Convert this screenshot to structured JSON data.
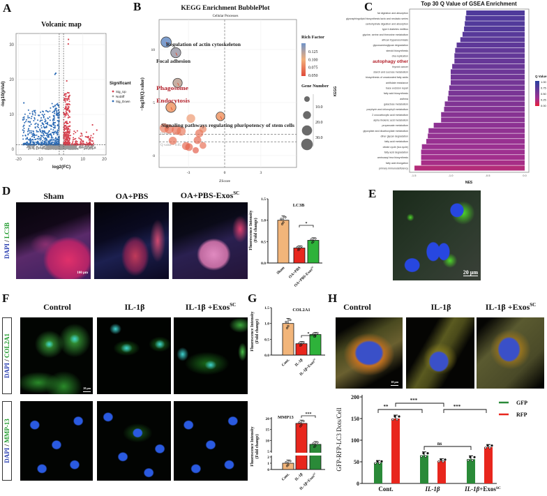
{
  "panels": {
    "A": {
      "label": "A",
      "title": "Volcanic map",
      "xlabel": "log2(FC)",
      "ylabel": "-log10(pVal)",
      "legend_title": "Significant",
      "legend": [
        "Sig_Up",
        "NoDiff",
        "Sig_Down"
      ]
    },
    "B": {
      "label": "B",
      "title": "KEGG Enrichment BubblePlot",
      "subtitle": "Cellular Processes",
      "xlabel": "ZScore",
      "ylabel": "−log10(Q.value)",
      "rich_factor_title": "Rich Factor",
      "gene_number_title": "Gene Number",
      "threshold_labels": [
        "Q value = 0.01",
        "Q value = 0.05"
      ]
    },
    "C": {
      "label": "C",
      "title": "Top 30 Q Value of GSEA Enrichment",
      "xlabel": "NES",
      "ylabel": "KEGG",
      "legend_title": "Q Value"
    },
    "D": {
      "label": "D",
      "columns": [
        {
          "main": "Sham",
          "sup": ""
        },
        {
          "main": "OA+PBS",
          "sup": ""
        },
        {
          "main": "OA+PBS-Exos",
          "sup": "SC"
        }
      ],
      "stain_a": "DAPI",
      "sep": " / ",
      "stain_b": "LC3B",
      "scale": "100 μm"
    },
    "E": {
      "label": "E",
      "scale": "20 μm"
    },
    "F": {
      "label": "F",
      "columns": [
        {
          "main": "Control",
          "sup": ""
        },
        {
          "main": "IL-1β",
          "sup": ""
        },
        {
          "main": "IL-1β +Exos",
          "sup": "SC"
        }
      ],
      "row1_a": "DAPI",
      "row1_b": "COL2A1",
      "row2_a": "DAPI",
      "row2_b": "MMP-13",
      "sep": " / ",
      "scale": "20 μm"
    },
    "G": {
      "label": "G"
    },
    "H": {
      "label": "H",
      "columns": [
        {
          "main": "Control",
          "sup": ""
        },
        {
          "main": "IL-1β",
          "sup": ""
        },
        {
          "main": "IL-1β +Exos",
          "sup": "SC"
        }
      ],
      "scale": "10 μm"
    }
  },
  "colors": {
    "sig_up": "#d6404e",
    "nodiff": "#9a9a9a",
    "sig_down": "#2c6bb5",
    "tan": "#f2b57a",
    "red": "#e8261d",
    "green": "#2eb23a",
    "dark_green": "#2a8a38",
    "highlight": "#b3202a"
  },
  "chart_data": [
    {
      "panel": "A",
      "type": "scatter",
      "title": "Volcanic map",
      "xlabel": "log2(FC)",
      "ylabel": "-log10(pVal)",
      "xlim": [
        -21,
        21
      ],
      "ylim": [
        -1.5,
        33
      ],
      "xticks": [
        "-20",
        "-10",
        "0",
        "10",
        "20"
      ],
      "yticks": [
        "0",
        "10",
        "20",
        "30"
      ],
      "thresholds": {
        "log2fc": [
          -1,
          1
        ],
        "neg_log10_p": 1.3
      },
      "series": [
        {
          "name": "Sig_Up"
        },
        {
          "name": "NoDiff"
        },
        {
          "name": "Sig_Down"
        }
      ],
      "notable_points": [
        {
          "x": 3.3,
          "y": 31.5
        },
        {
          "x": 3.2,
          "y": 30.2
        },
        {
          "x": 2.5,
          "y": 19.6
        },
        {
          "x": -3.0,
          "y": 21.5
        },
        {
          "x": -2.6,
          "y": 21.8
        },
        {
          "x": 16.5,
          "y": 5.5
        },
        {
          "x": 14.5,
          "y": 7.0
        },
        {
          "x": -17.5,
          "y": 13.3
        }
      ],
      "grid": true,
      "legend": "right"
    },
    {
      "panel": "B",
      "type": "scatter",
      "title": "KEGG Enrichment BubblePlot",
      "subtitle": "Cellular Processes",
      "xlabel": "ZScore",
      "ylabel": "−log10(Q.value)",
      "xticks": [
        "-3",
        "0",
        "3"
      ],
      "yticks": [
        "0",
        "5",
        "10"
      ],
      "thresholds": [
        2,
        1.3
      ],
      "rich_factor_ticks": [
        "0.125",
        "0.100",
        "0.075",
        "0.050"
      ],
      "gene_number_ticks": [
        "10.0",
        "20.0",
        "30.0"
      ],
      "points": [
        {
          "label": "Regulation of actin cytoskeleton",
          "z": -4.85,
          "q": 10.7,
          "rich": 0.14,
          "genes": 30,
          "highlight": false
        },
        {
          "label": "Focal adhesion",
          "z": -4.05,
          "q": 9.7,
          "rich": 0.125,
          "genes": 28,
          "highlight": false
        },
        {
          "label": "Phagosome",
          "z": -3.9,
          "q": 6.85,
          "rich": 0.115,
          "genes": 22,
          "highlight": true
        },
        {
          "label": "Endocytosis",
          "z": -4.45,
          "q": 4.55,
          "rich": 0.09,
          "genes": 28,
          "highlight": true
        },
        {
          "label": "Signaling pathways regulating pluripotency of stem cells",
          "z": -0.35,
          "q": 3.7,
          "rich": 0.09,
          "genes": 18,
          "highlight": false
        },
        {
          "label": "",
          "z": -2.8,
          "q": 3.5,
          "rich": 0.085,
          "genes": 18
        },
        {
          "label": "",
          "z": -5.0,
          "q": 2.6,
          "rich": 0.07,
          "genes": 22
        },
        {
          "label": "",
          "z": -4.6,
          "q": 2.5,
          "rich": 0.065,
          "genes": 20
        },
        {
          "label": "",
          "z": -4.0,
          "q": 2.4,
          "rich": 0.065,
          "genes": 22
        },
        {
          "label": "",
          "z": -3.6,
          "q": 2.3,
          "rich": 0.07,
          "genes": 20
        },
        {
          "label": "",
          "z": -2.1,
          "q": 2.1,
          "rich": 0.065,
          "genes": 14
        },
        {
          "label": "",
          "z": -1.8,
          "q": 2.5,
          "rich": 0.075,
          "genes": 10
        },
        {
          "label": "",
          "z": -2.25,
          "q": 1.45,
          "rich": 0.06,
          "genes": 12
        },
        {
          "label": "",
          "z": -4.3,
          "q": 1.4,
          "rich": 0.065,
          "genes": 14
        },
        {
          "label": "",
          "z": -3.2,
          "q": 0.9,
          "rich": 0.06,
          "genes": 14
        },
        {
          "label": "",
          "z": -2.95,
          "q": 0.8,
          "rich": 0.06,
          "genes": 12
        },
        {
          "label": "",
          "z": -1.8,
          "q": 0.95,
          "rich": 0.065,
          "genes": 8
        },
        {
          "label": "",
          "z": -2.4,
          "q": 0.5,
          "rich": 0.055,
          "genes": 6
        }
      ],
      "legend": "right"
    },
    {
      "panel": "C",
      "type": "bar",
      "orientation": "horizontal",
      "title": "Top 30 Q Value of GSEA Enrichment",
      "xlabel": "NES",
      "ylabel": "KEGG",
      "xlim": [
        -1.55,
        0.05
      ],
      "xticks": [
        "-1.5",
        "-1.0",
        "-0.5",
        "0.0"
      ],
      "legend_ticks": [
        "1.00",
        "0.75",
        "0.50",
        "0.25",
        "0.00"
      ],
      "categories": [
        "fat digestion and absorption",
        "glycosphingolipid biosynthesis lacto and neolacto series",
        "carbohydrate digestion and absorption",
        "type ii diabetes mellitus",
        "glycine, serine and threonine metabolism",
        "african trypanosomiasis",
        "glycosaminoglycan degradation",
        "steroid biosynthesis",
        "dna replication",
        "autophagy other",
        "thyroid cancer",
        "starch and sucrose metabolism",
        "biosynthesis of unsaturated fatty acids",
        "antifolate resistance",
        "base excision repair",
        "fatty acid biosynthesis",
        "asthma",
        "galactose metabolism",
        "porphyrin and chlorophyll metabolism",
        "2 oxocarboxylic acid metabolism",
        "alpha linolenic acid metabolism",
        "propanoate metabolism",
        "glyoxylate and dicarboxylate metabolism",
        "other glycan degradation",
        "fatty acid metabolism",
        "citrate cycle (tca cycle)",
        "fatty acid degradation",
        "aminoacyl trna biosynthesis",
        "fatty acid elongation",
        "primary immunodeficiency"
      ],
      "values": [
        -0.79,
        -0.8,
        -0.81,
        -0.82,
        -0.84,
        -0.87,
        -0.92,
        -0.94,
        -0.95,
        -0.95,
        -0.98,
        -1.0,
        -1.0,
        -1.0,
        -1.02,
        -1.03,
        -1.04,
        -1.08,
        -1.09,
        -1.13,
        -1.13,
        -1.23,
        -1.3,
        -1.31,
        -1.33,
        -1.39,
        -1.4,
        -1.4,
        -1.4,
        -1.49
      ],
      "qvalues": [
        0.78,
        0.77,
        0.76,
        0.75,
        0.73,
        0.71,
        0.69,
        0.67,
        0.66,
        0.64,
        0.62,
        0.6,
        0.58,
        0.56,
        0.55,
        0.53,
        0.51,
        0.49,
        0.47,
        0.45,
        0.43,
        0.41,
        0.39,
        0.37,
        0.35,
        0.33,
        0.31,
        0.29,
        0.27,
        0.22
      ],
      "highlight": "autophagy other",
      "legend": "right"
    },
    {
      "panel": "D",
      "type": "bar",
      "title": "LC3B",
      "ylabel": [
        "Fluorescence Intensity",
        "(Fold change)"
      ],
      "ylim": [
        0,
        1.5
      ],
      "yticks": [
        "0.0",
        "0.5",
        "1.0",
        "1.5"
      ],
      "categories": [
        {
          "main": "Sham",
          "sup": ""
        },
        {
          "main": "OA+PBS",
          "sup": ""
        },
        {
          "main": "OA+PBS-Exos",
          "sup": "SC"
        }
      ],
      "values": [
        1.0,
        0.35,
        0.53
      ],
      "errors": [
        0.1,
        0.05,
        0.06
      ],
      "significance": [
        {
          "from": 1,
          "to": 2,
          "label": "*"
        }
      ]
    },
    {
      "panel": "G",
      "type": "bar",
      "title": "COL2A1",
      "ylabel": [
        "Fluorescence Intensity",
        "(Fold change)"
      ],
      "ylim": [
        0,
        1.5
      ],
      "yticks": [
        "0.0",
        "0.5",
        "1.0",
        "1.5"
      ],
      "categories": [
        {
          "main": "Cont.",
          "sup": ""
        },
        {
          "main": "IL-1β",
          "sup": ""
        },
        {
          "main": "IL-1β+Exos",
          "sup": "SC"
        }
      ],
      "values": [
        1.0,
        0.36,
        0.65
      ],
      "errors": [
        0.16,
        0.07,
        0.07
      ],
      "significance": [
        {
          "from": 1,
          "to": 2,
          "label": "*"
        }
      ]
    },
    {
      "panel": "G",
      "type": "bar",
      "title": "MMP13",
      "ylabel": [
        "Fluorescence Intensity",
        "(Fold change)"
      ],
      "broken_axis": {
        "lower": [
          0,
          2
        ],
        "upper": [
          5,
          20
        ]
      },
      "yticks": [
        "0",
        "1",
        "2",
        "5",
        "10",
        "15",
        "20"
      ],
      "categories": [
        {
          "main": "Cont.",
          "sup": ""
        },
        {
          "main": "IL-1β",
          "sup": ""
        },
        {
          "main": "IL-1β+Exos",
          "sup": "SC"
        }
      ],
      "values": [
        1.0,
        17.8,
        8.2
      ],
      "errors": [
        0.5,
        1.5,
        1.3
      ],
      "significance": [
        {
          "from": 1,
          "to": 2,
          "label": "***"
        }
      ]
    },
    {
      "panel": "H",
      "type": "bar",
      "ylabel": "GFP-RFP-LC3 Dots/Cell",
      "ylim": [
        0,
        200
      ],
      "yticks": [
        "0",
        "50",
        "100",
        "150",
        "200"
      ],
      "categories": [
        {
          "main": "Cont.",
          "sup": "",
          "italic": false
        },
        {
          "main": "IL-1β",
          "sup": "",
          "italic": true
        },
        {
          "main": "IL-1β",
          "sup": "SC",
          "suffix": "+Exos",
          "italic": true
        }
      ],
      "series": [
        {
          "name": "GFP",
          "values": [
            48,
            65,
            56
          ],
          "errors": [
            5,
            8,
            8
          ]
        },
        {
          "name": "RFP",
          "values": [
            150,
            52,
            84
          ],
          "errors": [
            8,
            5,
            6
          ]
        }
      ],
      "significance": [
        {
          "label": "**"
        },
        {
          "label": "***"
        },
        {
          "label": "***"
        },
        {
          "label": "ns"
        }
      ],
      "legend": "right"
    }
  ]
}
